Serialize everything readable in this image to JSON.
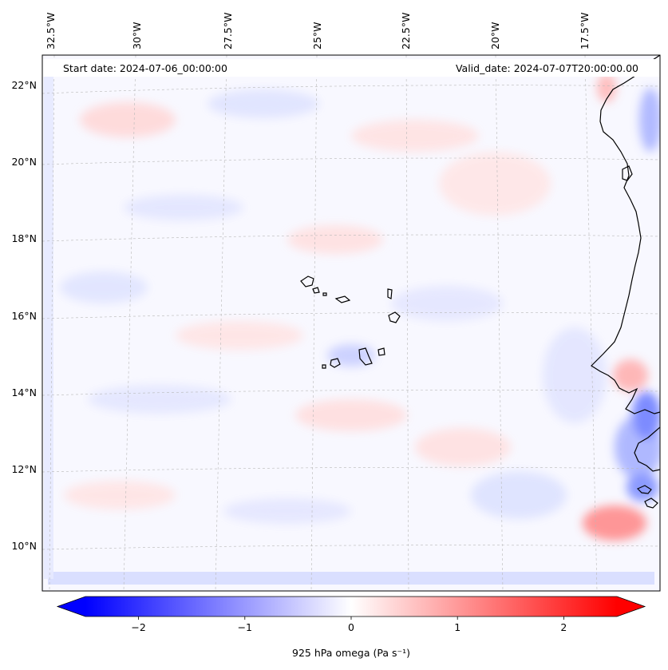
{
  "map": {
    "start_date_text": "Start date: 2024-07-06_00:00:00",
    "valid_date_text": "Valid_date: 2024-07-07T20:00:00.00",
    "lon_labels": [
      "32.5°W",
      "30°W",
      "27.5°W",
      "25°W",
      "22.5°W",
      "20°W",
      "17.5°W"
    ],
    "lat_labels": [
      "22°N",
      "20°N",
      "18°N",
      "16°N",
      "14°N",
      "12°N",
      "10°N"
    ],
    "features": [
      "Cape Verde islands",
      "West African coastline"
    ],
    "field": "925 hPa omega"
  },
  "colorbar": {
    "label": "925 hPa omega (Pa s⁻¹)",
    "ticks": [
      "−2",
      "−1",
      "0",
      "1",
      "2"
    ],
    "tick_values": [
      -2,
      -1,
      0,
      1,
      2
    ],
    "vmin": -2.5,
    "vmax": 2.5,
    "colormap": "bwr",
    "extend": "both",
    "colors": {
      "low": "#0000ff",
      "mid": "#ffffff",
      "high": "#ff0000"
    }
  },
  "colors": {
    "coastline": "#000000",
    "gridline": "#b0b0b0",
    "frame": "#000000"
  }
}
